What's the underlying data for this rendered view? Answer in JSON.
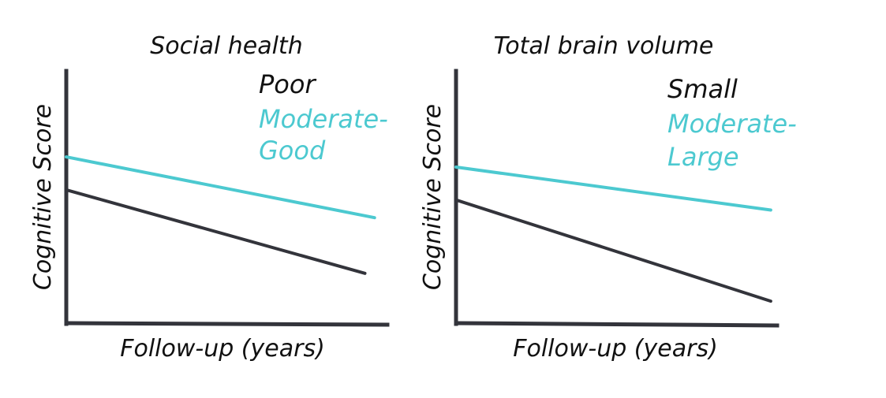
{
  "colors": {
    "axis": "#33343b",
    "series_dark": "#33343b",
    "series_teal": "#4cc9d0",
    "text": "#111111"
  },
  "chart_data": [
    {
      "type": "line",
      "title": "Social health",
      "xlabel": "Follow-up (years)",
      "ylabel": "Cognitive Score",
      "xlim": [
        0,
        1
      ],
      "ylim": [
        0,
        1
      ],
      "grid": false,
      "legend_position": "top-right",
      "series": [
        {
          "name": "Poor",
          "color": "#33343b",
          "x": [
            0,
            0.93
          ],
          "y": [
            0.53,
            0.2
          ]
        },
        {
          "name": "Moderate-Good",
          "legend_lines": [
            "Moderate-",
            "Good"
          ],
          "color": "#4cc9d0",
          "x": [
            0,
            0.96
          ],
          "y": [
            0.66,
            0.42
          ]
        }
      ]
    },
    {
      "type": "line",
      "title": "Total brain volume",
      "xlabel": "Follow-up (years)",
      "ylabel": "Cognitive Score",
      "xlim": [
        0,
        1
      ],
      "ylim": [
        0,
        1
      ],
      "grid": false,
      "legend_position": "top-right",
      "series": [
        {
          "name": "Small",
          "color": "#33343b",
          "x": [
            0,
            0.98
          ],
          "y": [
            0.49,
            0.09
          ]
        },
        {
          "name": "Moderate-Large",
          "legend_lines": [
            "Moderate-",
            "Large"
          ],
          "color": "#4cc9d0",
          "x": [
            0,
            0.98
          ],
          "y": [
            0.62,
            0.45
          ]
        }
      ]
    }
  ]
}
